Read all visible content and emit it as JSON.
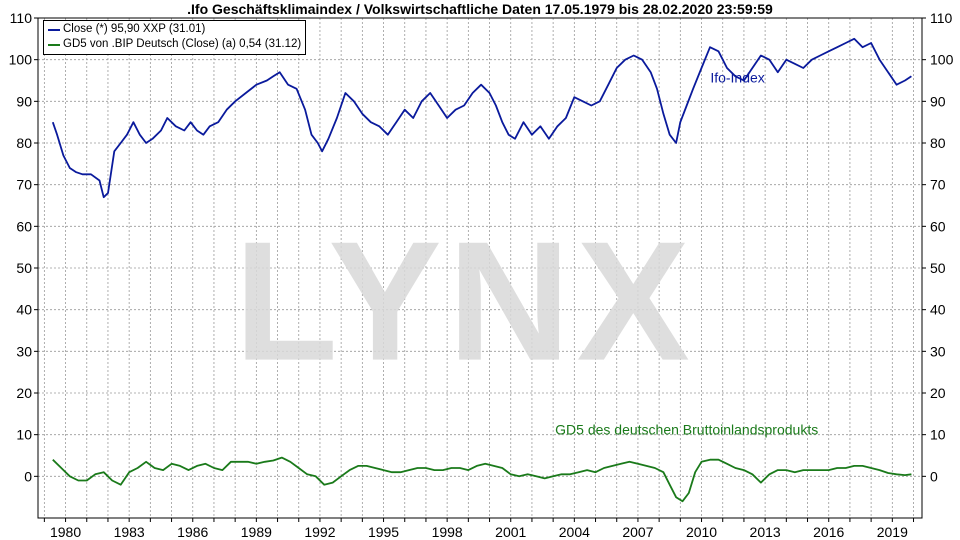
{
  "chart_data": {
    "type": "line",
    "title": ".Ifo Geschäftsklimaindex / Volkswirtschaftliche Daten 17.05.1979 bis 28.02.2020 23:59:59",
    "ylim": [
      -10,
      110
    ],
    "y_ticks": [
      0,
      10,
      20,
      30,
      40,
      50,
      60,
      70,
      80,
      90,
      100,
      110
    ],
    "y_tick_labels": [
      "0",
      "10",
      "20",
      "30",
      "40",
      "50",
      "60",
      "70",
      "80",
      "90",
      "100",
      "110"
    ],
    "xlim": [
      1978.7,
      2020.4
    ],
    "x_ticks": [
      1980,
      1983,
      1986,
      1989,
      1992,
      1995,
      1998,
      2001,
      2004,
      2007,
      2010,
      2013,
      2016,
      2019
    ],
    "x_tick_labels": [
      "1980",
      "1983",
      "1986",
      "1989",
      "1992",
      "1995",
      "1998",
      "2001",
      "2004",
      "2007",
      "2010",
      "2013",
      "2016",
      "2019"
    ],
    "grid": true,
    "legend_position": "top-left",
    "series": [
      {
        "name": "Close (*) 95,90 XXP (31.01)",
        "color": "#0a1a9c",
        "x": [
          1979.4,
          1979.6,
          1979.9,
          1980.2,
          1980.5,
          1980.8,
          1981.2,
          1981.6,
          1981.8,
          1982.0,
          1982.3,
          1982.6,
          1982.9,
          1983.2,
          1983.5,
          1983.8,
          1984.1,
          1984.5,
          1984.8,
          1985.2,
          1985.6,
          1985.9,
          1986.2,
          1986.5,
          1986.8,
          1987.2,
          1987.6,
          1988.0,
          1988.5,
          1989.0,
          1989.5,
          1989.8,
          1990.1,
          1990.5,
          1990.9,
          1991.3,
          1991.6,
          1991.9,
          1992.1,
          1992.4,
          1992.8,
          1993.2,
          1993.6,
          1994.0,
          1994.4,
          1994.8,
          1995.2,
          1995.6,
          1996.0,
          1996.4,
          1996.8,
          1997.2,
          1997.6,
          1998.0,
          1998.4,
          1998.8,
          1999.2,
          1999.6,
          2000.0,
          2000.3,
          2000.6,
          2000.9,
          2001.2,
          2001.6,
          2002.0,
          2002.4,
          2002.8,
          2003.2,
          2003.6,
          2004.0,
          2004.4,
          2004.8,
          2005.2,
          2005.6,
          2006.0,
          2006.4,
          2006.8,
          2007.2,
          2007.6,
          2007.9,
          2008.2,
          2008.5,
          2008.8,
          2009.0,
          2009.3,
          2009.6,
          2010.0,
          2010.4,
          2010.8,
          2011.2,
          2011.6,
          2012.0,
          2012.4,
          2012.8,
          2013.2,
          2013.6,
          2014.0,
          2014.4,
          2014.8,
          2015.2,
          2015.6,
          2016.0,
          2016.4,
          2016.8,
          2017.2,
          2017.6,
          2018.0,
          2018.4,
          2018.8,
          2019.2,
          2019.6,
          2019.9
        ],
        "values": [
          85,
          82,
          77,
          74,
          73,
          72.5,
          72.5,
          71,
          67,
          68,
          78,
          80,
          82,
          85,
          82,
          80,
          81,
          83,
          86,
          84,
          83,
          85,
          83,
          82,
          84,
          85,
          88,
          90,
          92,
          94,
          95,
          96,
          97,
          94,
          93,
          88,
          82,
          80,
          78,
          81,
          86,
          92,
          90,
          87,
          85,
          84,
          82,
          85,
          88,
          86,
          90,
          92,
          89,
          86,
          88,
          89,
          92,
          94,
          92,
          89,
          85,
          82,
          81,
          85,
          82,
          84,
          81,
          84,
          86,
          91,
          90,
          89,
          90,
          94,
          98,
          100,
          101,
          100,
          97,
          93,
          87,
          82,
          80,
          85,
          89,
          93,
          98,
          103,
          102,
          98,
          96,
          95,
          98,
          101,
          100,
          97,
          100,
          99,
          98,
          100,
          101,
          102,
          103,
          104,
          105,
          103,
          104,
          100,
          97,
          94,
          95,
          96
        ]
      },
      {
        "name": "GD5 von .BIP Deutsch (Close) (a) 0,54 (31.12)",
        "color": "#1a7a1a",
        "x": [
          1979.4,
          1979.8,
          1980.2,
          1980.6,
          1981.0,
          1981.4,
          1981.8,
          1982.2,
          1982.6,
          1983.0,
          1983.4,
          1983.8,
          1984.2,
          1984.6,
          1985.0,
          1985.4,
          1985.8,
          1986.2,
          1986.6,
          1987.0,
          1987.4,
          1987.8,
          1988.2,
          1988.6,
          1989.0,
          1989.4,
          1989.8,
          1990.2,
          1990.6,
          1991.0,
          1991.4,
          1991.8,
          1992.2,
          1992.6,
          1993.0,
          1993.4,
          1993.8,
          1994.2,
          1994.6,
          1995.0,
          1995.4,
          1995.8,
          1996.2,
          1996.6,
          1997.0,
          1997.4,
          1997.8,
          1998.2,
          1998.6,
          1999.0,
          1999.4,
          1999.8,
          2000.2,
          2000.6,
          2001.0,
          2001.4,
          2001.8,
          2002.2,
          2002.6,
          2003.0,
          2003.4,
          2003.8,
          2004.2,
          2004.6,
          2005.0,
          2005.4,
          2005.8,
          2006.2,
          2006.6,
          2007.0,
          2007.4,
          2007.8,
          2008.2,
          2008.5,
          2008.8,
          2009.1,
          2009.4,
          2009.7,
          2010.0,
          2010.4,
          2010.8,
          2011.2,
          2011.6,
          2012.0,
          2012.4,
          2012.8,
          2013.2,
          2013.6,
          2014.0,
          2014.4,
          2014.8,
          2015.2,
          2015.6,
          2016.0,
          2016.4,
          2016.8,
          2017.2,
          2017.6,
          2018.0,
          2018.4,
          2018.8,
          2019.2,
          2019.6,
          2019.9
        ],
        "values": [
          4,
          2,
          0,
          -1,
          -1,
          0.5,
          1,
          -1,
          -2,
          1,
          2,
          3.5,
          2,
          1.5,
          3,
          2.5,
          1.5,
          2.5,
          3,
          2,
          1.5,
          3.5,
          3.5,
          3.5,
          3,
          3.5,
          3.8,
          4.5,
          3.5,
          2,
          0.5,
          0,
          -2,
          -1.5,
          0,
          1.5,
          2.5,
          2.5,
          2,
          1.5,
          1,
          1,
          1.5,
          2,
          2,
          1.5,
          1.5,
          2,
          2,
          1.5,
          2.5,
          3,
          2.5,
          2,
          0.5,
          0,
          0.5,
          0,
          -0.5,
          0,
          0.5,
          0.5,
          1,
          1.5,
          1,
          2,
          2.5,
          3,
          3.5,
          3,
          2.5,
          2,
          1,
          -2,
          -5,
          -6,
          -4,
          1,
          3.5,
          4,
          4,
          3,
          2,
          1.5,
          0.5,
          -1.5,
          0.5,
          1.5,
          1.5,
          1,
          1.5,
          1.5,
          1.5,
          1.5,
          2,
          2,
          2.5,
          2.5,
          2,
          1.5,
          0.8,
          0.5,
          0.3,
          0.5
        ]
      }
    ],
    "annotations": [
      {
        "text": "Ifo-Index",
        "x": 2011.7,
        "y": 94.5,
        "color": "#0a1a9c"
      },
      {
        "text": "GD5 des deutschen Bruttoinlandsprodukts",
        "x": 2009.3,
        "y": 10,
        "color": "#1a7a1a"
      }
    ],
    "watermark": "LYNX"
  }
}
